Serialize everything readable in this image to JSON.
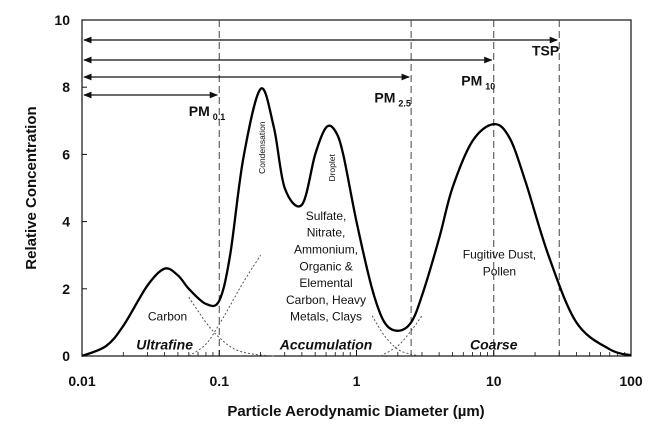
{
  "chart_data": {
    "type": "line",
    "xscale": "log",
    "xlim": [
      0.01,
      100
    ],
    "ylim": [
      0,
      10
    ],
    "x_ticks": [
      0.01,
      0.1,
      1,
      10,
      100
    ],
    "y_ticks": [
      0,
      2,
      4,
      6,
      8,
      10
    ],
    "x_tick_labels": [
      "0.01",
      "0.1",
      "1",
      "10",
      "100"
    ],
    "y_tick_labels": [
      "0",
      "2",
      "4",
      "6",
      "8",
      "10"
    ],
    "xlabel": "Particle Aerodynamic Diameter (µm)",
    "ylabel": "Relative Concentration",
    "grid": false,
    "series": [
      {
        "style": "solid",
        "x": [
          0.01,
          0.015,
          0.02,
          0.03,
          0.04,
          0.05,
          0.06,
          0.08,
          0.1,
          0.12,
          0.15,
          0.2,
          0.25,
          0.3,
          0.4,
          0.5,
          0.6,
          0.7,
          0.8,
          1.0,
          1.3,
          1.6,
          2.0,
          2.5,
          3.0,
          4.0,
          5.0,
          7.0,
          10,
          13,
          17,
          25,
          40,
          70,
          100
        ],
        "y": [
          0.0,
          0.3,
          0.9,
          2.1,
          2.6,
          2.4,
          2.0,
          1.55,
          1.65,
          3.0,
          5.9,
          7.95,
          6.8,
          5.0,
          4.5,
          6.0,
          6.8,
          6.7,
          6.0,
          4.0,
          2.0,
          1.0,
          0.75,
          1.0,
          1.8,
          3.5,
          5.0,
          6.4,
          6.9,
          6.5,
          5.2,
          3.0,
          1.0,
          0.2,
          0.02
        ]
      },
      {
        "style": "dotted",
        "x": [
          0.06,
          0.08,
          0.1,
          0.12,
          0.15,
          0.2
        ],
        "y": [
          0.0,
          0.35,
          0.95,
          1.5,
          2.2,
          3.0
        ]
      },
      {
        "style": "dotted",
        "x": [
          0.06,
          0.08,
          0.1,
          0.13,
          0.18,
          0.25
        ],
        "y": [
          1.75,
          1.0,
          0.55,
          0.2,
          0.05,
          0.0
        ]
      },
      {
        "style": "dotted",
        "x": [
          1.3,
          1.6,
          2.0,
          2.5,
          3.0
        ],
        "y": [
          1.2,
          0.6,
          0.2,
          0.05,
          0.0
        ]
      },
      {
        "style": "dotted",
        "x": [
          1.5,
          2.0,
          2.5,
          3.0
        ],
        "y": [
          0.0,
          0.3,
          0.75,
          1.2
        ]
      }
    ],
    "ranges": [
      {
        "label": "TSP",
        "to": 30,
        "label_x": 19,
        "label_y": 8.95
      },
      {
        "label": "PM",
        "sub": "10",
        "to": 10,
        "label_x": 5.8,
        "label_y": 8.05
      },
      {
        "label": "PM",
        "sub": "2.5",
        "to": 2.5,
        "label_x": 1.35,
        "label_y": 7.55
      },
      {
        "label": "PM",
        "sub": "0.1",
        "to": 0.1,
        "label_x": 0.06,
        "label_y": 7.15
      }
    ],
    "cut_lines": [
      0.1,
      2.5,
      10,
      30
    ],
    "annotations": [
      {
        "text": "Carbon",
        "x": 0.042,
        "y": 1.05
      },
      {
        "text": "Ultrafine",
        "x": 0.04,
        "y": 0.2,
        "style": "italic"
      },
      {
        "text": "Accumulation",
        "x": 0.6,
        "y": 0.2,
        "style": "italic"
      },
      {
        "text": "Coarse",
        "x": 10,
        "y": 0.2,
        "style": "italic"
      },
      {
        "text": "Condensation",
        "x": 0.215,
        "y": 6.2,
        "rotate": -90
      },
      {
        "text": "Droplet",
        "x": 0.7,
        "y": 5.6,
        "rotate": -90
      },
      {
        "text": "Fugitive Dust,",
        "x": 11,
        "y": 2.9
      },
      {
        "text": "Pollen",
        "x": 11,
        "y": 2.4
      },
      {
        "text": "Sulfate,",
        "x": 0.6,
        "y": 4.05
      },
      {
        "text": "Nitrate,",
        "x": 0.6,
        "y": 3.55
      },
      {
        "text": "Ammonium,",
        "x": 0.6,
        "y": 3.05
      },
      {
        "text": "Organic &",
        "x": 0.6,
        "y": 2.55
      },
      {
        "text": "Elemental",
        "x": 0.6,
        "y": 2.05
      },
      {
        "text": "Carbon, Heavy",
        "x": 0.6,
        "y": 1.55
      },
      {
        "text": "Metals, Clays",
        "x": 0.6,
        "y": 1.05
      }
    ]
  }
}
